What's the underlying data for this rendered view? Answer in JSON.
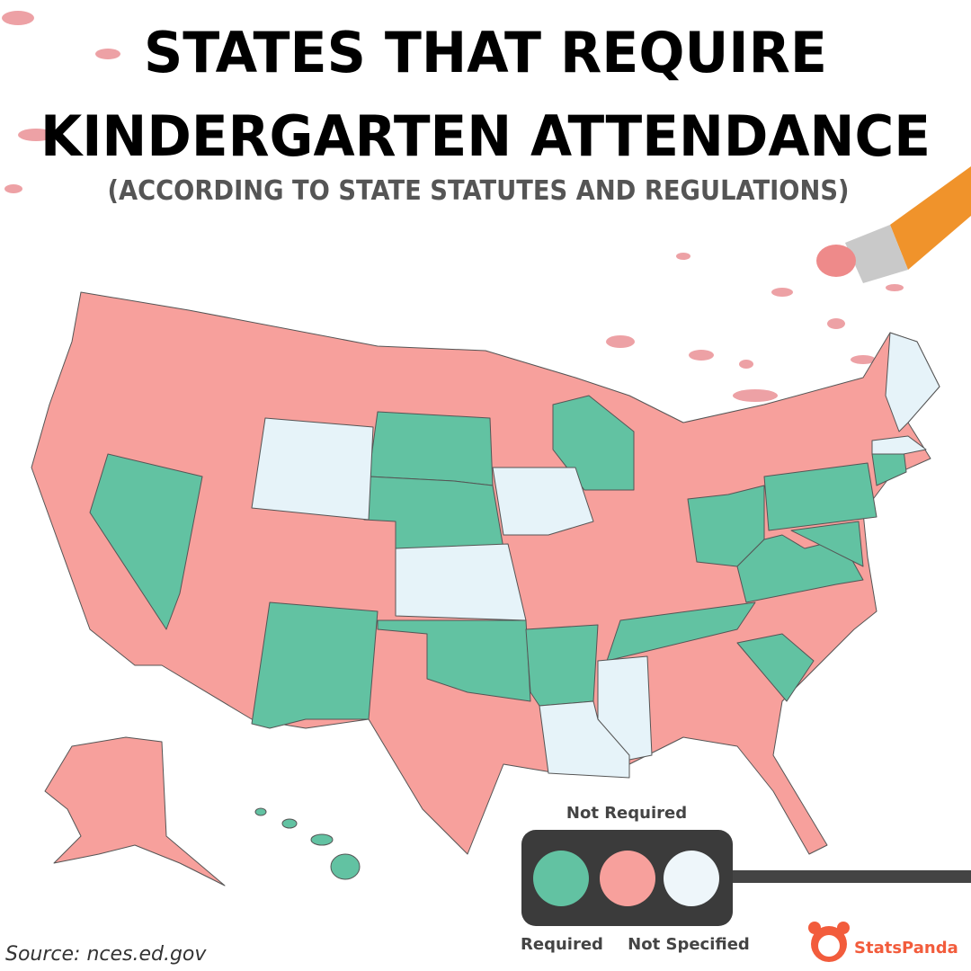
{
  "header": {
    "title_lines": [
      "STATES THAT REQUIRE",
      "KINDERGARTEN ATTENDANCE"
    ],
    "subtitle": "(ACCORDING TO STATE STATUTES AND REGULATIONS)"
  },
  "legend": {
    "top_label": "Not Required",
    "left_label": "Required",
    "right_label": "Not Specified"
  },
  "footer": {
    "source": "Source: nces.ed.gov",
    "brand": "StatsPanda"
  }
}
